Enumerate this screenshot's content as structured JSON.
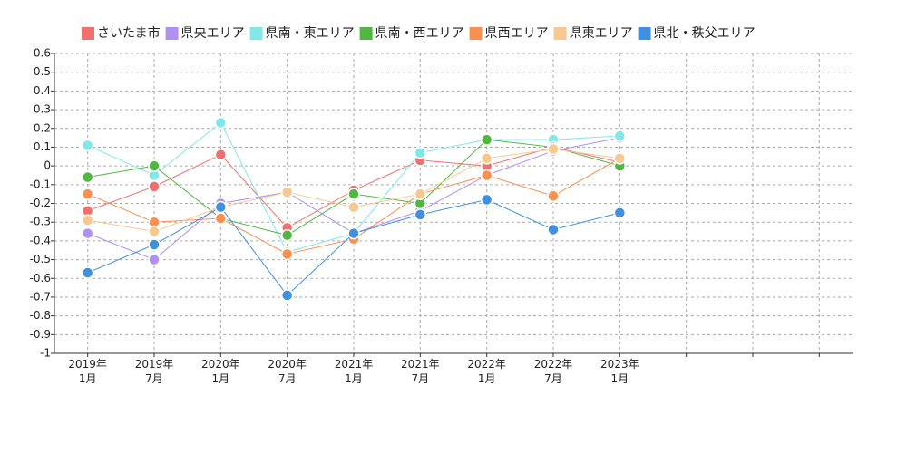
{
  "chart_data": {
    "type": "line",
    "categories": [
      "2019年\n1月",
      "2019年\n7月",
      "2020年\n1月",
      "2020年\n7月",
      "2021年\n1月",
      "2021年\n7月",
      "2022年\n1月",
      "2022年\n7月",
      "2023年\n1月",
      null,
      null,
      null
    ],
    "series": [
      {
        "name": "さいたま市",
        "color": "#f07070",
        "values": [
          -0.24,
          -0.11,
          0.06,
          -0.33,
          -0.13,
          0.03,
          0.0,
          0.1,
          0.02,
          null,
          null,
          null
        ]
      },
      {
        "name": "県央エリア",
        "color": "#b090f0",
        "values": [
          -0.36,
          -0.5,
          -0.2,
          -0.14,
          -0.36,
          -0.24,
          -0.05,
          0.08,
          0.15,
          null,
          null,
          null
        ]
      },
      {
        "name": "県南・東エリア",
        "color": "#80e8e8",
        "values": [
          0.11,
          -0.05,
          0.23,
          -0.46,
          -0.36,
          0.07,
          0.14,
          0.14,
          0.16,
          null,
          null,
          null
        ]
      },
      {
        "name": "県南・西エリア",
        "color": "#50b840",
        "values": [
          -0.06,
          0.0,
          -0.28,
          -0.37,
          -0.15,
          -0.2,
          0.14,
          0.1,
          0.0,
          null,
          null,
          null
        ]
      },
      {
        "name": "県西エリア",
        "color": "#f89050",
        "values": [
          -0.15,
          -0.3,
          -0.28,
          -0.47,
          -0.39,
          -0.15,
          -0.05,
          -0.16,
          0.04,
          null,
          null,
          null
        ]
      },
      {
        "name": "県東エリア",
        "color": "#f8c890",
        "values": [
          -0.29,
          -0.35,
          -0.22,
          -0.14,
          -0.22,
          -0.15,
          0.04,
          0.09,
          0.04,
          null,
          null,
          null
        ]
      },
      {
        "name": "県北・秩父エリア",
        "color": "#4090e0",
        "values": [
          -0.57,
          -0.42,
          -0.22,
          -0.69,
          -0.36,
          -0.26,
          -0.18,
          -0.34,
          -0.25,
          null,
          null,
          null
        ]
      }
    ],
    "ylim": [
      -1,
      0.6
    ],
    "yticks": [
      0.6,
      0.5,
      0.4,
      0.3,
      0.2,
      0.1,
      0,
      -0.1,
      -0.2,
      -0.3,
      -0.4,
      -0.5,
      -0.6,
      -0.7,
      -0.8,
      -0.9,
      -1
    ],
    "grid": true
  }
}
